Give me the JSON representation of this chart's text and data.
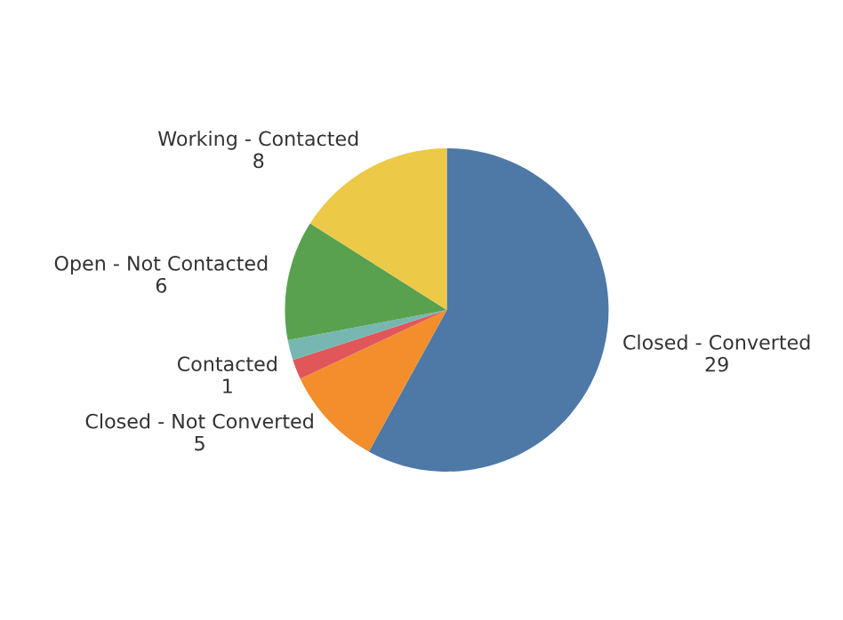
{
  "chart_data": {
    "type": "pie",
    "categories": [
      "Closed - Converted",
      "Closed - Not Converted",
      "Contacted",
      null,
      "Open - Not Contacted",
      "Working - Contacted"
    ],
    "values": [
      29,
      5,
      1,
      1,
      6,
      8
    ],
    "colors": [
      "#4e79a7",
      "#f28e2b",
      "#e15759",
      "#76b7b2",
      "#59a14f",
      "#edc948"
    ],
    "value_labels": [
      "29",
      "5",
      "1",
      null,
      "6",
      "8"
    ],
    "legend": false
  }
}
